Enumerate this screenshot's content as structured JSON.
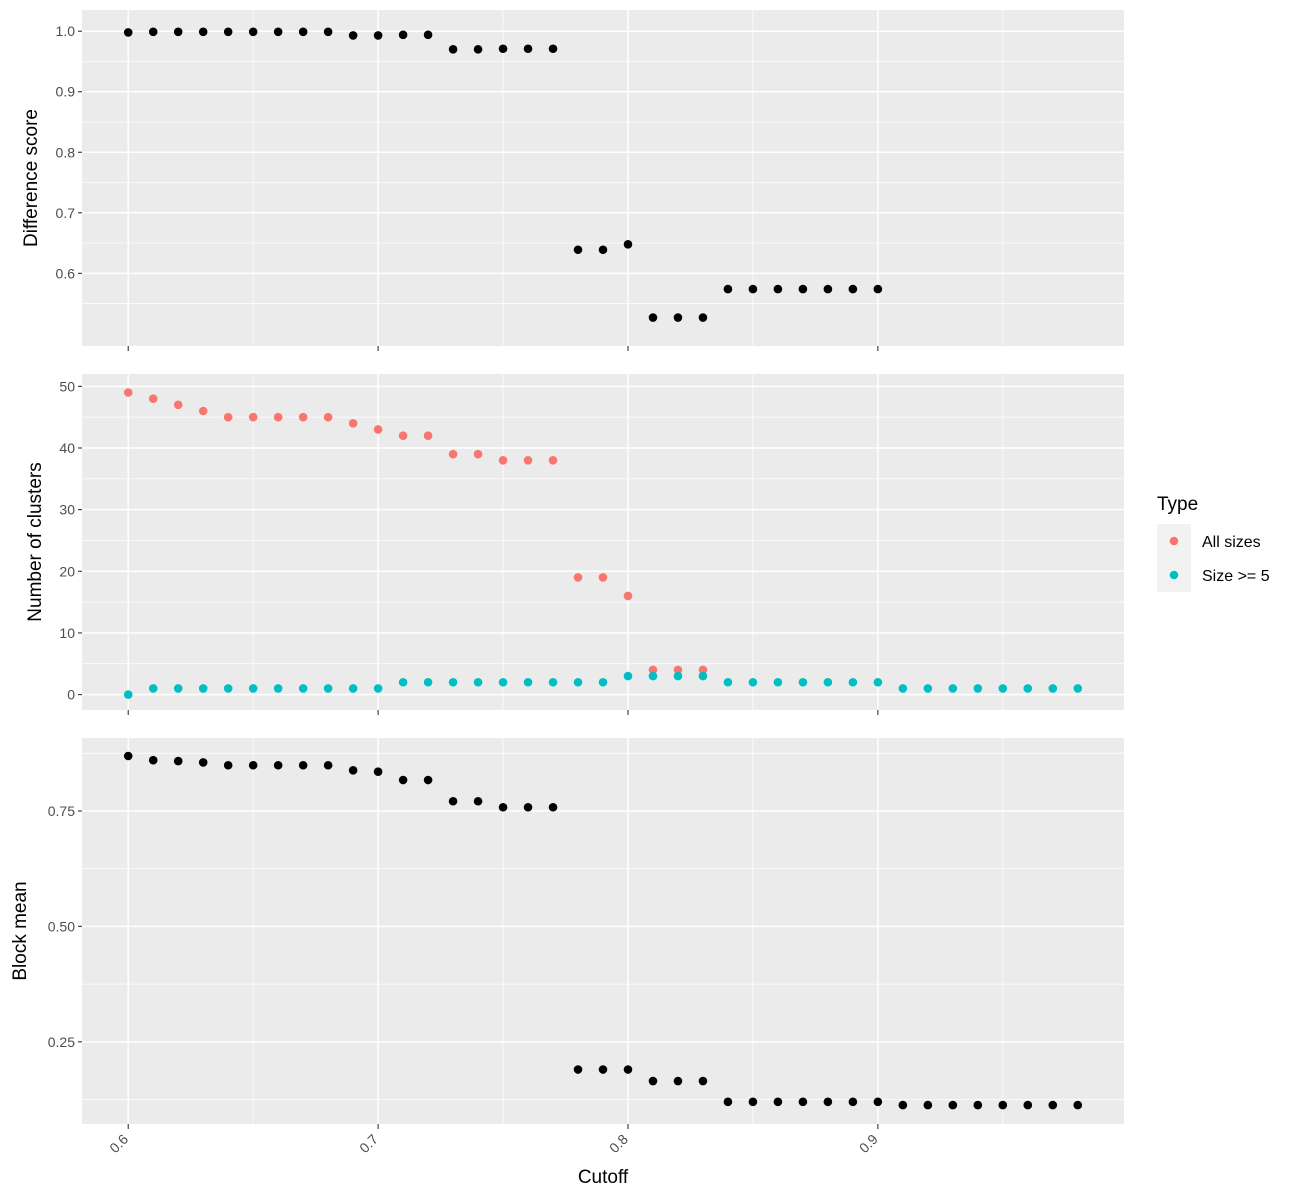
{
  "chart_data": [
    {
      "type": "scatter",
      "ylabel": "Difference score",
      "xlim": [
        0.5815,
        0.9985
      ],
      "ylim": [
        0.48,
        1.035
      ],
      "yticks": [
        0.6,
        0.7,
        0.8,
        0.9,
        1.0
      ],
      "ytick_labels": [
        "0.6",
        "0.7",
        "0.8",
        "0.9",
        "1.0"
      ],
      "grid": true,
      "series": [
        {
          "color": "#000000",
          "x": [
            0.6,
            0.61,
            0.62,
            0.63,
            0.64,
            0.65,
            0.66,
            0.67,
            0.68,
            0.69,
            0.7,
            0.71,
            0.72,
            0.73,
            0.74,
            0.75,
            0.76,
            0.77,
            0.78,
            0.79,
            0.8,
            0.81,
            0.82,
            0.83,
            0.84,
            0.85,
            0.86,
            0.87,
            0.88,
            0.89,
            0.9
          ],
          "y": [
            0.998,
            0.999,
            0.999,
            0.999,
            0.999,
            0.999,
            0.999,
            0.999,
            0.999,
            0.993,
            0.993,
            0.994,
            0.994,
            0.97,
            0.97,
            0.971,
            0.971,
            0.971,
            0.639,
            0.639,
            0.648,
            0.527,
            0.527,
            0.527,
            0.574,
            0.574,
            0.574,
            0.574,
            0.574,
            0.574,
            0.574
          ]
        }
      ]
    },
    {
      "type": "scatter",
      "ylabel": "Number of clusters",
      "xlim": [
        0.5815,
        0.9985
      ],
      "ylim": [
        -2.5,
        52
      ],
      "yticks": [
        0,
        10,
        20,
        30,
        40,
        50
      ],
      "ytick_labels": [
        "0",
        "10",
        "20",
        "30",
        "40",
        "50"
      ],
      "grid": true,
      "series": [
        {
          "name": "All sizes",
          "color": "#F8766D",
          "x": [
            0.6,
            0.61,
            0.62,
            0.63,
            0.64,
            0.65,
            0.66,
            0.67,
            0.68,
            0.69,
            0.7,
            0.71,
            0.72,
            0.73,
            0.74,
            0.75,
            0.76,
            0.77,
            0.78,
            0.79,
            0.8,
            0.81,
            0.82,
            0.83
          ],
          "y": [
            49,
            48,
            47,
            46,
            45,
            45,
            45,
            45,
            45,
            44,
            43,
            42,
            42,
            39,
            39,
            38,
            38,
            38,
            19,
            19,
            16,
            4,
            4,
            4
          ]
        },
        {
          "name": "Size >= 5",
          "color": "#00BFC4",
          "x": [
            0.6,
            0.61,
            0.62,
            0.63,
            0.64,
            0.65,
            0.66,
            0.67,
            0.68,
            0.69,
            0.7,
            0.71,
            0.72,
            0.73,
            0.74,
            0.75,
            0.76,
            0.77,
            0.78,
            0.79,
            0.8,
            0.81,
            0.82,
            0.83,
            0.84,
            0.85,
            0.86,
            0.87,
            0.88,
            0.89,
            0.9,
            0.91,
            0.92,
            0.93,
            0.94,
            0.95,
            0.96,
            0.97,
            0.98
          ],
          "y": [
            0,
            1,
            1,
            1,
            1,
            1,
            1,
            1,
            1,
            1,
            1,
            2,
            2,
            2,
            2,
            2,
            2,
            2,
            2,
            2,
            3,
            3,
            3,
            3,
            2,
            2,
            2,
            2,
            2,
            2,
            2,
            1,
            1,
            1,
            1,
            1,
            1,
            1,
            1
          ]
        }
      ]
    },
    {
      "type": "scatter",
      "ylabel": "Block mean",
      "xlabel": "Cutoff",
      "xlim": [
        0.5815,
        0.9985
      ],
      "ylim": [
        0.072,
        0.908
      ],
      "yticks": [
        0.25,
        0.5,
        0.75
      ],
      "ytick_labels": [
        "0.25",
        "0.50",
        "0.75"
      ],
      "xticks": [
        0.6,
        0.7,
        0.8,
        0.9
      ],
      "xtick_labels": [
        "0.6",
        "0.7",
        "0.8",
        "0.9"
      ],
      "grid": true,
      "series": [
        {
          "color": "#000000",
          "x": [
            0.6,
            0.61,
            0.62,
            0.63,
            0.64,
            0.65,
            0.66,
            0.67,
            0.68,
            0.69,
            0.7,
            0.71,
            0.72,
            0.73,
            0.74,
            0.75,
            0.76,
            0.77,
            0.78,
            0.79,
            0.8,
            0.81,
            0.82,
            0.83,
            0.84,
            0.85,
            0.86,
            0.87,
            0.88,
            0.89,
            0.9,
            0.91,
            0.92,
            0.93,
            0.94,
            0.95,
            0.96,
            0.97,
            0.98
          ],
          "y": [
            0.869,
            0.86,
            0.858,
            0.855,
            0.849,
            0.849,
            0.849,
            0.849,
            0.849,
            0.838,
            0.835,
            0.817,
            0.817,
            0.771,
            0.771,
            0.758,
            0.758,
            0.758,
            0.19,
            0.19,
            0.19,
            0.165,
            0.165,
            0.165,
            0.12,
            0.12,
            0.12,
            0.12,
            0.12,
            0.12,
            0.12,
            0.113,
            0.113,
            0.113,
            0.113,
            0.113,
            0.113,
            0.113,
            0.113
          ]
        }
      ]
    }
  ],
  "legend": {
    "title": "Type",
    "items": [
      {
        "label": "All sizes",
        "color": "#F8766D"
      },
      {
        "label": "Size >= 5",
        "color": "#00BFC4"
      }
    ]
  }
}
